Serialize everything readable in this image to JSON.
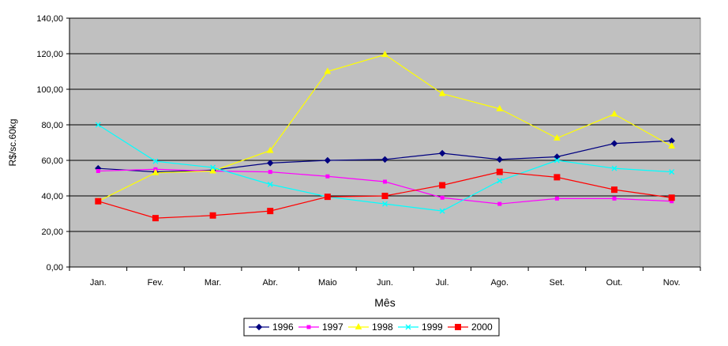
{
  "chart_data": {
    "type": "line",
    "title": "",
    "xlabel": "Mês",
    "ylabel": "R$/sc.60kg",
    "ylim": [
      0,
      140
    ],
    "yticks": [
      "0,00",
      "20,00",
      "40,00",
      "60,00",
      "80,00",
      "100,00",
      "120,00",
      "140,00"
    ],
    "categories": [
      "Jan.",
      "Fev.",
      "Mar.",
      "Abr.",
      "Maio",
      "Jun.",
      "Jul.",
      "Ago.",
      "Set.",
      "Out.",
      "Nov."
    ],
    "grid": true,
    "plot_background": "#c0c0c0",
    "legend_position": "bottom",
    "series": [
      {
        "name": "1996",
        "color": "#000080",
        "marker": "diamond",
        "values": [
          55.5,
          53.5,
          54.5,
          58.5,
          60,
          60.5,
          64,
          60.5,
          62,
          69.5,
          71
        ]
      },
      {
        "name": "1997",
        "color": "#ff00ff",
        "marker": "square",
        "values": [
          54,
          55,
          54,
          53.5,
          51,
          48,
          39,
          35.5,
          38.5,
          38.5,
          37
        ]
      },
      {
        "name": "1998",
        "color": "#ffff00",
        "marker": "triangle",
        "values": [
          37,
          53,
          54,
          65.5,
          110,
          119.5,
          97.5,
          89,
          72.5,
          86,
          68
        ]
      },
      {
        "name": "1999",
        "color": "#00ffff",
        "marker": "x",
        "values": [
          80,
          59.5,
          56,
          46.5,
          39.5,
          35.5,
          31.5,
          48.5,
          60,
          55.5,
          53.5
        ]
      },
      {
        "name": "2000",
        "color": "#ff0000",
        "marker": "bigsquare",
        "values": [
          37,
          27.5,
          29,
          31.5,
          39.5,
          40,
          46,
          53.5,
          50.5,
          43.5,
          39
        ]
      }
    ]
  }
}
